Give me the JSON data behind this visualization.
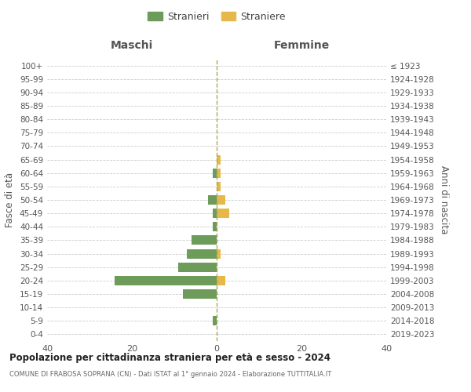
{
  "age_groups": [
    "0-4",
    "5-9",
    "10-14",
    "15-19",
    "20-24",
    "25-29",
    "30-34",
    "35-39",
    "40-44",
    "45-49",
    "50-54",
    "55-59",
    "60-64",
    "65-69",
    "70-74",
    "75-79",
    "80-84",
    "85-89",
    "90-94",
    "95-99",
    "100+"
  ],
  "birth_years": [
    "2019-2023",
    "2014-2018",
    "2009-2013",
    "2004-2008",
    "1999-2003",
    "1994-1998",
    "1989-1993",
    "1984-1988",
    "1979-1983",
    "1974-1978",
    "1969-1973",
    "1964-1968",
    "1959-1963",
    "1954-1958",
    "1949-1953",
    "1944-1948",
    "1939-1943",
    "1934-1938",
    "1929-1933",
    "1924-1928",
    "≤ 1923"
  ],
  "maschi_stranieri": [
    0,
    1,
    0,
    8,
    24,
    9,
    7,
    6,
    1,
    1,
    2,
    0,
    1,
    0,
    0,
    0,
    0,
    0,
    0,
    0,
    0
  ],
  "femmine_straniere": [
    0,
    0,
    0,
    0,
    2,
    0,
    1,
    0,
    0,
    3,
    2,
    1,
    1,
    1,
    0,
    0,
    0,
    0,
    0,
    0,
    0
  ],
  "color_maschi": "#6d9b5a",
  "color_femmine": "#e6b84a",
  "title": "Popolazione per cittadinanza straniera per età e sesso - 2024",
  "subtitle": "COMUNE DI FRABOSA SOPRANA (CN) - Dati ISTAT al 1° gennaio 2024 - Elaborazione TUTTITALIA.IT",
  "xlabel_left": "Maschi",
  "xlabel_right": "Femmine",
  "ylabel_left": "Fasce di età",
  "ylabel_right": "Anni di nascita",
  "legend_maschi": "Stranieri",
  "legend_femmine": "Straniere",
  "xlim": 40,
  "background_color": "#ffffff",
  "grid_color": "#cccccc"
}
